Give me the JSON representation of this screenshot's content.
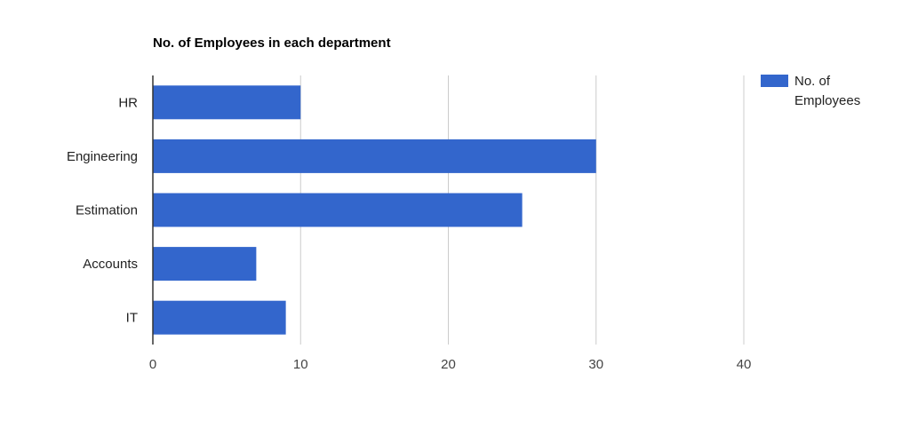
{
  "chart_data": {
    "type": "bar",
    "orientation": "horizontal",
    "title": "No. of Employees in each department",
    "categories": [
      "HR",
      "Engineering",
      "Estimation",
      "Accounts",
      "IT"
    ],
    "series": [
      {
        "name": "No. of Employees",
        "name_lines": [
          "No. of",
          "Employees"
        ],
        "values": [
          10,
          30,
          25,
          7,
          9
        ],
        "color": "#3366cc"
      }
    ],
    "xlabel": "",
    "ylabel": "",
    "xlim": [
      0,
      40
    ],
    "x_ticks": [
      "0",
      "10",
      "20",
      "30",
      "40"
    ],
    "grid": true,
    "legend_position": "top-right",
    "gridline_color": "#cccccc",
    "axis_color": "#333333"
  }
}
